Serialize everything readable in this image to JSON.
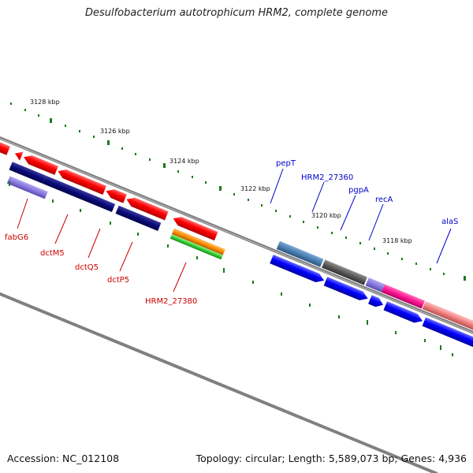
{
  "title": "Desulfobacterium autotrophicum HRM2, complete genome",
  "footer": {
    "accession": "Accession: NC_012108",
    "summary": "Topology: circular; Length: 5,589,073 bp; Genes: 4,936"
  },
  "scale_labels": [
    "3128 kbp",
    "3126 kbp",
    "3124 kbp",
    "3122 kbp",
    "3120 kbp",
    "3118 kbp"
  ],
  "gene_labels": {
    "red": [
      "fabG6",
      "dctM5",
      "dctQ5",
      "dctP5",
      "HRM2_27380"
    ],
    "blue": [
      "pepT",
      "HRM2_27360",
      "pgpA",
      "recA",
      "alaS"
    ]
  },
  "colors": {
    "title": "#222222",
    "tick": "#1a7a1a",
    "red_label": "#cc0000",
    "blue_label": "#0000cc",
    "backbone": "#808080",
    "gene_red": "#ff0000",
    "gene_blue": "#0000ff",
    "gene_navy": "#0a0a78",
    "gene_steel": "#4a7fb0",
    "gene_gray": "#5a5a5a",
    "gene_lavender": "#8878e0",
    "gene_magenta": "#ff1493",
    "gene_pink": "#f08080",
    "gene_orange": "#ff8c00",
    "gene_green": "#32cd32"
  }
}
